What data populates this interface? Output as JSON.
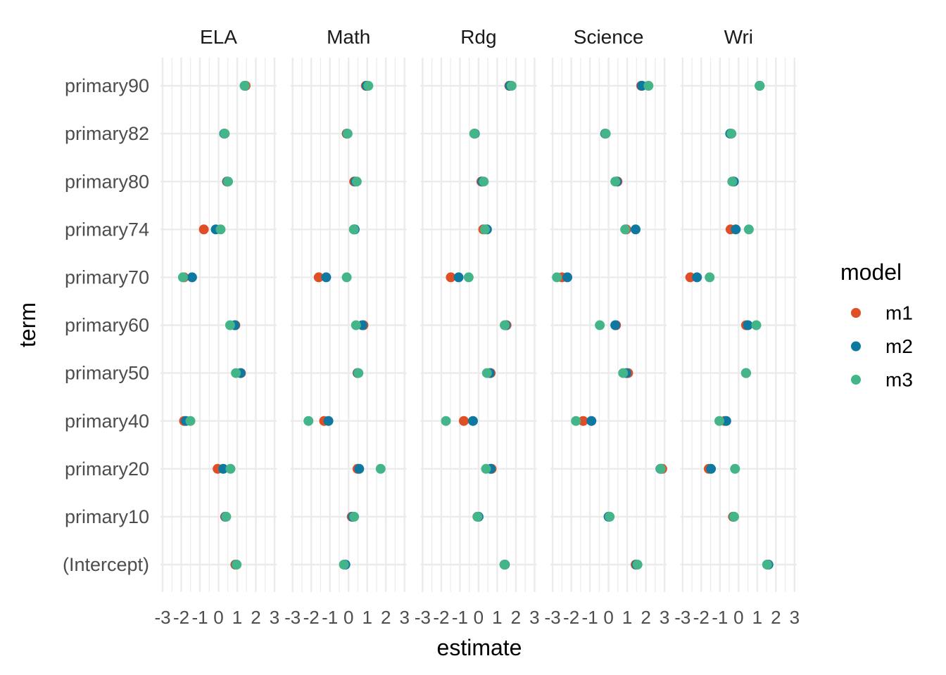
{
  "chart_data": {
    "type": "scatter",
    "title": "",
    "xlabel": "estimate",
    "ylabel": "term",
    "xlim": [
      -3,
      3
    ],
    "x_ticks": [
      "-3",
      "-2",
      "-1",
      "0",
      "1",
      "2",
      "3"
    ],
    "grid": true,
    "legend": {
      "title": "model",
      "position": "right"
    },
    "terms": [
      "primary90",
      "primary82",
      "primary80",
      "primary74",
      "primary70",
      "primary60",
      "primary50",
      "primary40",
      "primary20",
      "primary10",
      "(Intercept)"
    ],
    "models": [
      {
        "name": "m1",
        "color": "#E04E25"
      },
      {
        "name": "m2",
        "color": "#0F78A1"
      },
      {
        "name": "m3",
        "color": "#44B588"
      }
    ],
    "facets": [
      {
        "name": "ELA",
        "series": [
          [
            1.45,
            0.33,
            0.45,
            -0.79,
            -1.85,
            0.9,
            1.2,
            -1.85,
            -0.05,
            0.35,
            0.9
          ],
          [
            1.4,
            0.3,
            0.48,
            -0.15,
            -1.42,
            0.87,
            1.18,
            -1.75,
            0.25,
            0.38,
            0.95
          ],
          [
            1.4,
            0.33,
            0.51,
            0.11,
            -1.91,
            0.62,
            0.93,
            -1.51,
            0.64,
            0.41,
            0.97
          ]
        ]
      },
      {
        "name": "Math",
        "series": [
          [
            0.93,
            -0.1,
            0.3,
            0.3,
            -1.6,
            0.8,
            0.48,
            -1.31,
            0.48,
            0.17,
            -0.2
          ],
          [
            0.97,
            -0.07,
            0.37,
            0.33,
            -1.2,
            0.74,
            0.5,
            -1.08,
            0.57,
            0.22,
            -0.17
          ],
          [
            1.06,
            -0.05,
            0.44,
            0.28,
            -0.1,
            0.4,
            0.53,
            -2.15,
            1.72,
            0.3,
            -0.25
          ]
        ]
      },
      {
        "name": "Rdg",
        "series": [
          [
            1.65,
            -0.23,
            0.15,
            0.25,
            -1.49,
            1.5,
            0.65,
            -0.79,
            0.7,
            -0.06,
            1.39
          ],
          [
            1.68,
            -0.2,
            0.2,
            0.45,
            -1.07,
            1.45,
            0.6,
            -0.3,
            0.65,
            0.0,
            1.41
          ],
          [
            1.77,
            -0.23,
            0.28,
            0.34,
            -0.53,
            1.4,
            0.45,
            -1.75,
            0.4,
            -0.06,
            1.39
          ]
        ]
      },
      {
        "name": "Science",
        "series": [
          [
            1.75,
            -0.18,
            0.48,
            0.95,
            -2.5,
            0.4,
            1.05,
            -1.36,
            2.88,
            0.02,
            1.45
          ],
          [
            1.79,
            -0.18,
            0.44,
            1.45,
            -2.21,
            0.36,
            0.95,
            -0.92,
            2.78,
            0.0,
            1.5
          ],
          [
            2.14,
            -0.15,
            0.36,
            0.89,
            -2.77,
            -0.47,
            0.78,
            -1.75,
            2.8,
            0.06,
            1.55
          ]
        ]
      },
      {
        "name": "Wri",
        "series": [
          [
            1.13,
            -0.42,
            -0.3,
            -0.43,
            -2.59,
            0.4,
            0.4,
            -0.75,
            -1.6,
            -0.3,
            1.55
          ],
          [
            1.13,
            -0.45,
            -0.25,
            -0.15,
            -2.23,
            0.5,
            0.4,
            -0.66,
            -1.48,
            -0.26,
            1.6
          ],
          [
            1.13,
            -0.38,
            -0.34,
            0.55,
            -1.55,
            0.95,
            0.4,
            -1.03,
            -0.19,
            -0.24,
            1.53
          ]
        ]
      }
    ]
  }
}
